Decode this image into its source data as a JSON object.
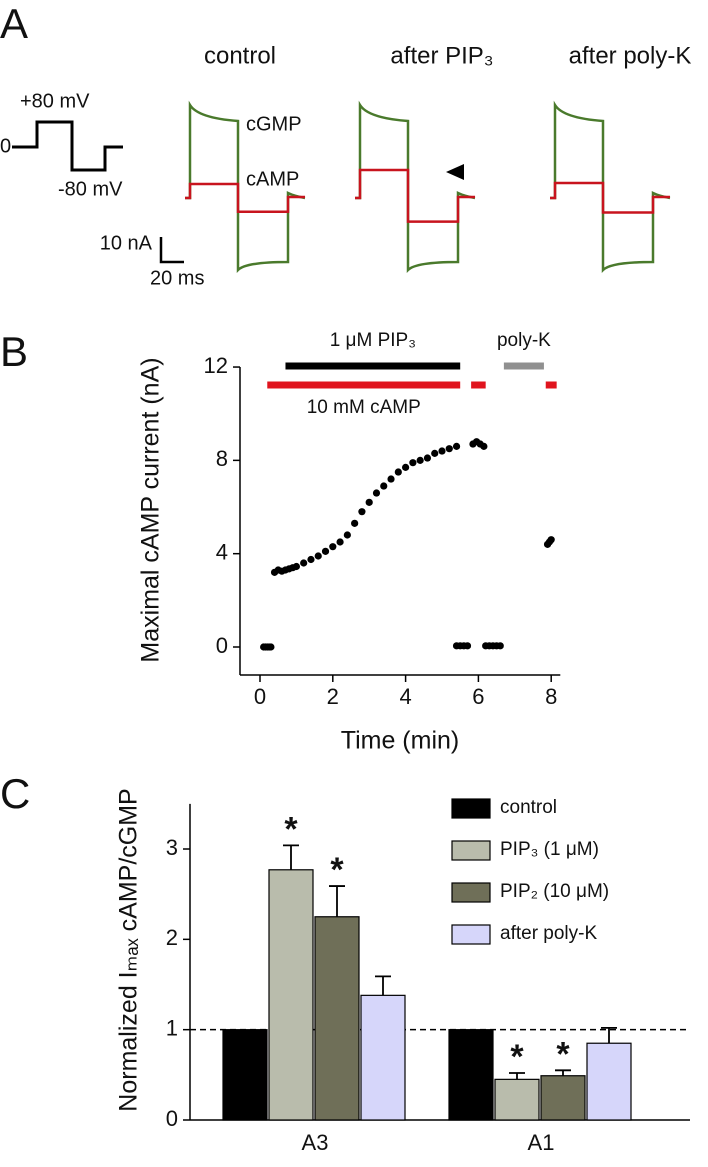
{
  "panel_labels": [
    "A",
    "B",
    "C"
  ],
  "chart_data": [
    {
      "type": "traces",
      "protocol_labels": [
        "+80 mV",
        "0",
        "-80 mV"
      ],
      "conditions": [
        "control",
        "after PIP₃",
        "after poly-K"
      ],
      "trace_labels": [
        "cGMP",
        "cAMP"
      ],
      "trace_colors": [
        "#4a7a2c",
        "#c8141e"
      ],
      "scale_bars": [
        "10 nA",
        "20 ms"
      ]
    },
    {
      "type": "scatter",
      "x_label": "Time (min)",
      "y_label": "Maximal cAMP current (nA)",
      "xlim": [
        -0.55,
        8.25
      ],
      "ylim": [
        -1.2,
        12
      ],
      "xticks": [
        0,
        2,
        4,
        6,
        8
      ],
      "yticks": [
        0,
        4,
        8,
        12
      ],
      "color": "#000000",
      "x": [
        0.1,
        0.15,
        0.2,
        0.25,
        0.3,
        0.4,
        0.5,
        0.6,
        0.7,
        0.8,
        0.9,
        1.0,
        1.2,
        1.4,
        1.6,
        1.8,
        2.0,
        2.2,
        2.4,
        2.6,
        2.8,
        3.0,
        3.2,
        3.4,
        3.6,
        3.8,
        4.0,
        4.2,
        4.4,
        4.6,
        4.8,
        5.0,
        5.2,
        5.4,
        5.4,
        5.5,
        5.6,
        5.7,
        5.85,
        5.95,
        6.05,
        6.15,
        6.2,
        6.3,
        6.4,
        6.5,
        6.6,
        7.9,
        7.95,
        8.0
      ],
      "y": [
        0,
        0,
        0,
        0,
        0,
        3.2,
        3.3,
        3.25,
        3.3,
        3.35,
        3.4,
        3.45,
        3.6,
        3.75,
        3.9,
        4.1,
        4.3,
        4.5,
        4.8,
        5.3,
        5.8,
        6.2,
        6.6,
        6.9,
        7.2,
        7.5,
        7.7,
        7.9,
        8.0,
        8.1,
        8.3,
        8.4,
        8.5,
        8.6,
        0.05,
        0.05,
        0.05,
        0.05,
        8.7,
        8.8,
        8.7,
        8.6,
        0.05,
        0.05,
        0.05,
        0.05,
        0.05,
        4.4,
        4.5,
        4.6
      ],
      "applications": [
        {
          "label": "1 μM PIP₃",
          "color": "#000000",
          "x": [
            0.7,
            5.5
          ]
        },
        {
          "label": "10 mM cAMP",
          "color": "#e0141e",
          "x": [
            0.2,
            5.5
          ]
        },
        {
          "color": "#e0141e",
          "x": [
            5.8,
            6.2
          ]
        },
        {
          "label": "poly-K",
          "color": "#909090",
          "x": [
            6.7,
            7.8
          ]
        },
        {
          "color": "#e0141e",
          "x": [
            7.85,
            8.15
          ]
        }
      ]
    },
    {
      "type": "bar",
      "y_label": "Normalized Iₘₐₓ cAMP/cGMP",
      "categories": [
        "A3",
        "A1"
      ],
      "ylim": [
        0,
        3.5
      ],
      "yticks": [
        0,
        1,
        2,
        3
      ],
      "reference_line": 1,
      "legend": "upper-right",
      "series": [
        {
          "name": "control",
          "color": "#000000",
          "values": [
            1,
            1
          ]
        },
        {
          "name": "PIP₃ (1 μM)",
          "color": "#b9bcac",
          "values": [
            2.77,
            0.45
          ],
          "errors": [
            0.27,
            0.07
          ],
          "significance": [
            "*",
            "*"
          ]
        },
        {
          "name": "PIP₂ (10 μM)",
          "color": "#6f6f58",
          "values": [
            2.25,
            0.49
          ],
          "errors": [
            0.34,
            0.06
          ],
          "significance": [
            "*",
            "*"
          ]
        },
        {
          "name": "after poly-K",
          "color": "#d6d6fa",
          "values": [
            1.38,
            0.85
          ],
          "errors": [
            0.21,
            0.17
          ]
        }
      ]
    }
  ]
}
